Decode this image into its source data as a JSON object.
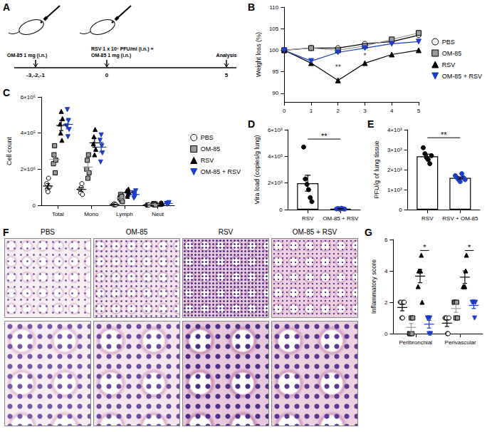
{
  "schematic": {
    "panel": "A",
    "steps": [
      {
        "time": "-3,-2,-1",
        "text": [
          "OM-85 1 mg (i.n.)"
        ]
      },
      {
        "time": "0",
        "text": [
          "RSV 1 x 10⁷ PFU/ml (i.n.) +",
          "OM-85 1 mg (i.n.)"
        ]
      },
      {
        "time": "5",
        "text": [
          "Analysis"
        ]
      }
    ]
  },
  "histology": {
    "panel": "F",
    "groups": [
      "PBS",
      "OM-85",
      "RSV",
      "OM-85 + RSV"
    ]
  },
  "chart_data": [
    {
      "panel": "B",
      "type": "line",
      "y_label": "Weight loss (%)",
      "x": [
        0,
        1,
        2,
        3,
        4,
        5
      ],
      "xlim": [
        0,
        5
      ],
      "xticks": [
        0,
        1,
        2,
        3,
        4,
        5
      ],
      "ylim": [
        88,
        110
      ],
      "yticks": [
        90,
        95,
        100,
        105,
        110
      ],
      "legend": "right",
      "series": [
        {
          "name": "PBS",
          "color": "#ffffff",
          "marker": "circle",
          "values": [
            100,
            100.5,
            100.5,
            101.5,
            102,
            103.5
          ]
        },
        {
          "name": "OM-85",
          "color": "#9a9a9a",
          "marker": "square",
          "values": [
            100,
            100.5,
            100,
            101,
            102.5,
            104
          ]
        },
        {
          "name": "RSV",
          "color": "#000000",
          "marker": "triangle",
          "values": [
            100,
            97,
            93,
            97,
            99,
            100
          ]
        },
        {
          "name": "OM-85 + RSV",
          "color": "#1c3ec8",
          "marker": "triangle_down",
          "values": [
            100,
            97.5,
            99.5,
            100.5,
            101.5,
            102
          ]
        }
      ],
      "annotations": [
        {
          "x": 2,
          "y": 96,
          "text": "**"
        },
        {
          "x": 3,
          "y": 98.7,
          "text": "*"
        }
      ]
    },
    {
      "panel": "C",
      "type": "scatter",
      "y_label": "Cell count",
      "categories": [
        "Total",
        "Mono",
        "Lymph",
        "Neut"
      ],
      "ylim": [
        0,
        600000
      ],
      "yticks": [
        0,
        {
          "value": 200000,
          "label": "2×10⁵"
        },
        {
          "value": 400000,
          "label": "4×10⁵"
        },
        {
          "value": 600000,
          "label": "6×10⁵"
        }
      ],
      "legend": "right",
      "series": [
        {
          "name": "PBS",
          "color": "#ffffff",
          "marker": "circle",
          "values": [
            [
              120000,
              90000,
              75000,
              150000,
              100000
            ],
            [
              90000,
              70000,
              100000,
              120000,
              60000
            ],
            [
              5000,
              3000,
              8000,
              2000,
              4000
            ],
            [
              1000,
              2000,
              1000,
              3000,
              2000
            ]
          ]
        },
        {
          "name": "OM-85",
          "color": "#9a9a9a",
          "marker": "square",
          "values": [
            [
              230000,
              280000,
              330000,
              180000,
              250000
            ],
            [
              200000,
              250000,
              150000,
              280000,
              180000
            ],
            [
              40000,
              60000,
              30000,
              50000,
              20000
            ],
            [
              5000,
              10000,
              3000,
              8000,
              2000
            ]
          ]
        },
        {
          "name": "RSV",
          "color": "#000000",
          "marker": "triangle",
          "values": [
            [
              450000,
              400000,
              520000,
              360000,
              480000
            ],
            [
              340000,
              380000,
              280000,
              420000,
              310000
            ],
            [
              80000,
              50000,
              60000,
              90000,
              70000
            ],
            [
              10000,
              5000,
              15000,
              8000,
              12000
            ]
          ]
        },
        {
          "name": "OM-85 + RSV",
          "color": "#1c3ec8",
          "marker": "triangle_down",
          "values": [
            [
              440000,
              530000,
              380000,
              470000,
              420000
            ],
            [
              360000,
              240000,
              390000,
              330000,
              290000
            ],
            [
              70000,
              40000,
              60000,
              50000,
              80000
            ],
            [
              10000,
              5000,
              12000,
              8000,
              15000
            ]
          ]
        }
      ]
    },
    {
      "panel": "D",
      "type": "bar",
      "y_label": "Vira load (copies/g lung)",
      "categories": [
        "RSV",
        "OM-85 + RSV"
      ],
      "colors": [
        "#000000",
        "#1c3ec8"
      ],
      "ylim": [
        0,
        6000
      ],
      "yticks": [
        0,
        {
          "value": 2000,
          "label": "2×10³"
        },
        {
          "value": 4000,
          "label": "4×10³"
        },
        {
          "value": 6000,
          "label": "6×10³"
        }
      ],
      "values": [
        [
          4700,
          2300,
          1900,
          1500,
          900,
          600
        ],
        [
          50,
          80,
          30,
          100,
          60,
          40
        ]
      ],
      "significance": [
        {
          "between": [
            0,
            1
          ],
          "y": 5300,
          "label": "**"
        }
      ]
    },
    {
      "panel": "E",
      "type": "bar",
      "y_label": "PFU/g of lung tissue",
      "categories": [
        "RSV",
        "RSV + OM-85"
      ],
      "colors": [
        "#000000",
        "#1c3ec8"
      ],
      "ylim": [
        0,
        4000
      ],
      "yticks": [
        0,
        {
          "value": 1000,
          "label": "1×10³"
        },
        {
          "value": 2000,
          "label": "2×10³"
        },
        {
          "value": 3000,
          "label": "3×10³"
        },
        {
          "value": 4000,
          "label": "4×10³"
        }
      ],
      "values": [
        [
          3100,
          2800,
          2600,
          2500,
          2300,
          2700
        ],
        [
          1700,
          1600,
          1500,
          1400,
          1800,
          1600,
          1500
        ]
      ],
      "significance": [
        {
          "between": [
            0,
            1
          ],
          "y": 3600,
          "label": "**"
        }
      ]
    },
    {
      "panel": "G",
      "type": "scatter",
      "y_label": "Inflammatory score",
      "categories": [
        "Peribronchial",
        "Perivascular"
      ],
      "ylim": [
        0,
        6
      ],
      "yticks": [
        0,
        2,
        4,
        6
      ],
      "series": [
        {
          "name": "PBS",
          "color": "#ffffff",
          "marker": "circle",
          "values": [
            [
              2,
              2,
              1,
              1,
              2,
              2
            ],
            [
              1,
              1,
              1,
              0,
              0,
              1
            ]
          ]
        },
        {
          "name": "OM-85",
          "color": "#9a9a9a",
          "marker": "square",
          "values": [
            [
              0,
              0,
              1,
              0,
              1
            ],
            [
              2,
              2,
              1,
              2,
              1
            ]
          ]
        },
        {
          "name": "RSV",
          "color": "#000000",
          "marker": "triangle",
          "values": [
            [
              3,
              4,
              4,
              4,
              5,
              2
            ],
            [
              3,
              3,
              3,
              4,
              5
            ]
          ]
        },
        {
          "name": "OM-85 + RSV",
          "color": "#1c3ec8",
          "marker": "triangle_down",
          "values": [
            [
              1,
              1,
              0,
              1,
              0
            ],
            [
              2,
              2,
              2,
              1,
              2
            ]
          ]
        }
      ],
      "significance": [
        {
          "category": 0,
          "between": [
            2,
            3
          ],
          "y": 5.3,
          "label": "*"
        },
        {
          "category": 1,
          "between": [
            2,
            3
          ],
          "y": 5.3,
          "label": "*"
        }
      ]
    }
  ]
}
